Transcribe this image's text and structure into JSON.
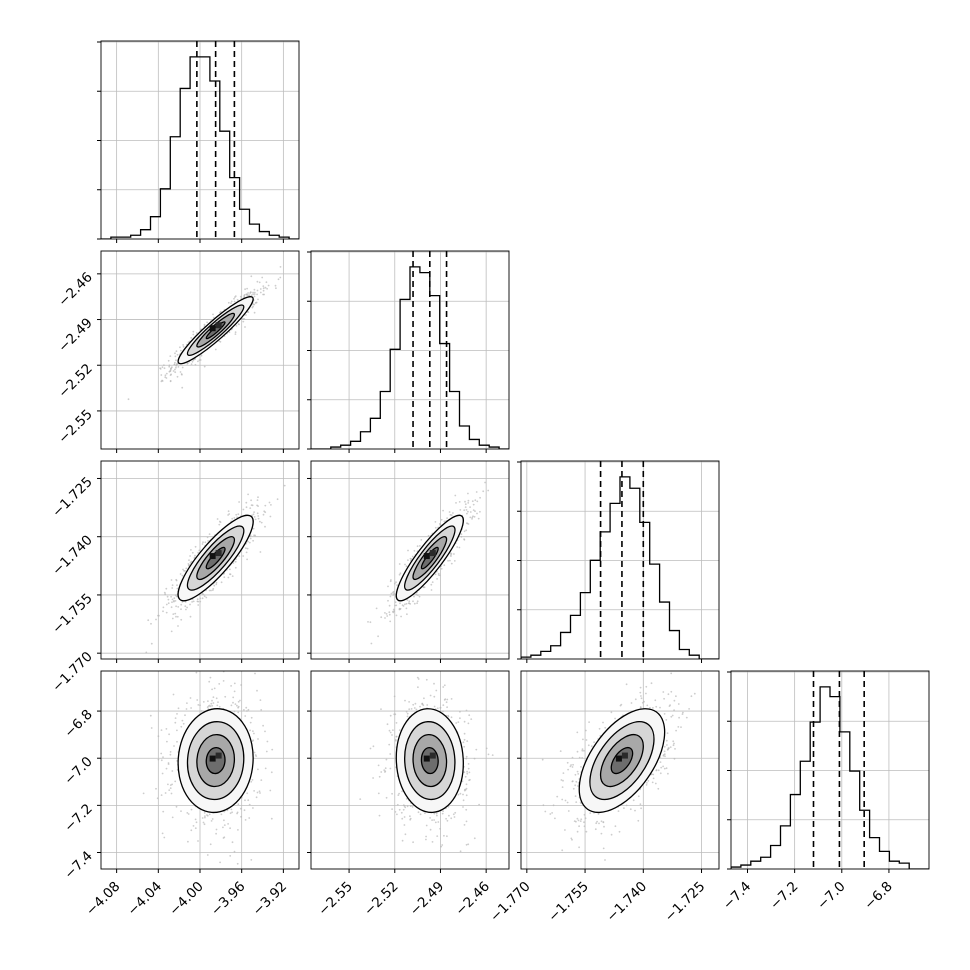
{
  "chart_data": {
    "type": "corner",
    "title": "",
    "n_params": 4,
    "params": [
      {
        "median": -3.985,
        "q16": -4.003,
        "q84": -3.967,
        "xlim": [
          -4.095,
          -3.905
        ],
        "ticks": [
          -4.08,
          -4.04,
          -4.0,
          -3.96,
          -3.92
        ],
        "tick_labels": [
          "−4.08",
          "−4.04",
          "−4.00",
          "−3.96",
          "−3.92"
        ],
        "hist_edges_range": [
          -4.095,
          -3.905
        ],
        "hist_counts": [
          0,
          1,
          1,
          2,
          5,
          12,
          27,
          55,
          81,
          98,
          98,
          85,
          58,
          33,
          16,
          8,
          4,
          2,
          1,
          0
        ]
      },
      {
        "median": -2.497,
        "q16": -2.508,
        "q84": -2.486,
        "xlim": [
          -2.575,
          -2.445
        ],
        "ticks": [
          -2.55,
          -2.52,
          -2.49,
          -2.46
        ],
        "tick_labels": [
          "−2.55",
          "−2.52",
          "−2.49",
          "−2.46"
        ],
        "hist_edges_range": [
          -2.575,
          -2.445
        ],
        "hist_counts": [
          0,
          0,
          1,
          2,
          4,
          9,
          16,
          30,
          52,
          78,
          95,
          92,
          80,
          55,
          30,
          12,
          5,
          2,
          1,
          0
        ]
      },
      {
        "median": -1.7455,
        "q16": -1.751,
        "q84": -1.74,
        "xlim": [
          -1.7715,
          -1.7205
        ],
        "ticks": [
          -1.77,
          -1.755,
          -1.74,
          -1.725
        ],
        "tick_labels": [
          "−1.770",
          "−1.755",
          "−1.740",
          "−1.725"
        ],
        "hist_edges_range": [
          -1.7715,
          -1.7205
        ],
        "hist_counts": [
          1,
          2,
          4,
          7,
          14,
          23,
          35,
          52,
          67,
          82,
          96,
          90,
          72,
          50,
          30,
          15,
          5,
          2,
          0,
          0
        ]
      },
      {
        "median": -7.01,
        "q16": -7.12,
        "q84": -6.905,
        "xlim": [
          -7.47,
          -6.63
        ],
        "ticks": [
          -7.4,
          -7.2,
          -7.0,
          -6.8
        ],
        "tick_labels": [
          "−7.4",
          "−7.2",
          "−7.0",
          "−6.8"
        ],
        "hist_edges_range": [
          -7.47,
          -6.63
        ],
        "hist_counts": [
          1,
          2,
          4,
          6,
          12,
          22,
          38,
          55,
          75,
          93,
          88,
          70,
          50,
          30,
          16,
          9,
          4,
          3,
          0,
          0
        ]
      }
    ],
    "pairs": [
      {
        "row": 1,
        "col": 0,
        "corr": 0.93
      },
      {
        "row": 2,
        "col": 0,
        "corr": 0.85
      },
      {
        "row": 2,
        "col": 1,
        "corr": 0.88
      },
      {
        "row": 3,
        "col": 0,
        "corr": 0.05
      },
      {
        "row": 3,
        "col": 1,
        "corr": -0.05
      },
      {
        "row": 3,
        "col": 2,
        "corr": 0.55
      }
    ],
    "sigma": [
      0.018,
      0.011,
      0.0055,
      0.11
    ],
    "contour_levels_sigma": [
      0.5,
      1.0,
      1.5,
      2.0
    ],
    "grid": true,
    "colors": {
      "hist": "#000000",
      "quantile_line": "#000000",
      "scatter": "#b8b8b8",
      "grid": "#bdbdbd"
    }
  }
}
